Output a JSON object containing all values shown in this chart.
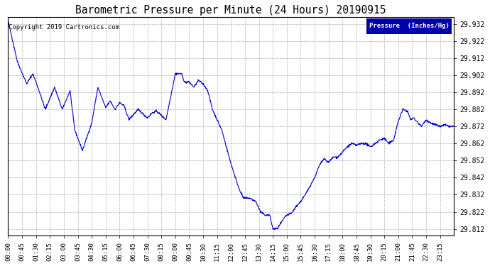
{
  "title": "Barometric Pressure per Minute (24 Hours) 20190915",
  "copyright": "Copyright 2019 Cartronics.com",
  "legend_label": "Pressure  (Inches/Hg)",
  "line_color": "#0000cc",
  "background_color": "#ffffff",
  "grid_color": "#aaaaaa",
  "ylim": [
    29.808,
    29.936
  ],
  "yticks": [
    29.812,
    29.822,
    29.832,
    29.842,
    29.852,
    29.862,
    29.872,
    29.882,
    29.892,
    29.902,
    29.912,
    29.922,
    29.932
  ],
  "xtick_labels": [
    "00:00",
    "00:45",
    "01:30",
    "02:15",
    "03:00",
    "03:45",
    "04:30",
    "05:15",
    "06:00",
    "06:45",
    "07:30",
    "08:15",
    "09:00",
    "09:45",
    "10:30",
    "11:15",
    "12:00",
    "12:45",
    "13:30",
    "14:15",
    "15:00",
    "15:45",
    "16:30",
    "17:15",
    "18:00",
    "18:45",
    "19:30",
    "20:15",
    "21:00",
    "21:45",
    "22:30",
    "23:15"
  ],
  "anchors_x": [
    0,
    30,
    60,
    80,
    100,
    120,
    150,
    175,
    200,
    215,
    240,
    270,
    290,
    315,
    330,
    345,
    360,
    375,
    390,
    420,
    450,
    465,
    480,
    510,
    540,
    560,
    570,
    585,
    600,
    615,
    630,
    645,
    660,
    690,
    720,
    745,
    760,
    780,
    800,
    815,
    830,
    845,
    855,
    870,
    880,
    895,
    900,
    915,
    930,
    945,
    960,
    975,
    990,
    1005,
    1020,
    1035,
    1050,
    1065,
    1080,
    1095,
    1110,
    1125,
    1140,
    1155,
    1170,
    1185,
    1200,
    1215,
    1230,
    1245,
    1260,
    1275,
    1290,
    1300,
    1310,
    1320,
    1335,
    1350,
    1365,
    1380,
    1395,
    1410,
    1425,
    1439
  ],
  "anchors_y": [
    29.934,
    29.91,
    29.897,
    29.903,
    29.893,
    29.882,
    29.895,
    29.882,
    29.893,
    29.87,
    29.858,
    29.874,
    29.895,
    29.883,
    29.887,
    29.882,
    29.886,
    29.884,
    29.876,
    29.882,
    29.877,
    29.88,
    29.881,
    29.876,
    29.903,
    29.903,
    29.898,
    29.898,
    29.895,
    29.899,
    29.897,
    29.893,
    29.882,
    29.87,
    29.85,
    29.836,
    29.83,
    29.83,
    29.828,
    29.822,
    29.82,
    29.82,
    29.812,
    29.812,
    29.815,
    29.819,
    29.82,
    29.821,
    29.825,
    29.828,
    29.832,
    29.837,
    29.842,
    29.849,
    29.853,
    29.851,
    29.854,
    29.854,
    29.857,
    29.86,
    29.862,
    29.861,
    29.862,
    29.862,
    29.86,
    29.862,
    29.864,
    29.865,
    29.862,
    29.864,
    29.875,
    29.882,
    29.881,
    29.876,
    29.877,
    29.875,
    29.872,
    29.876,
    29.874,
    29.873,
    29.872,
    29.873,
    29.872,
    29.872
  ]
}
